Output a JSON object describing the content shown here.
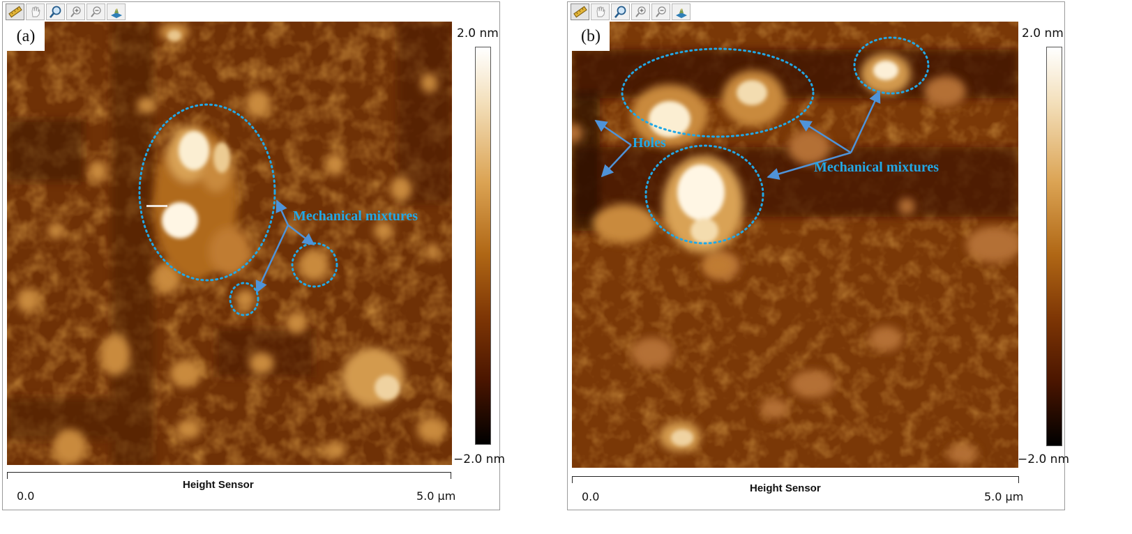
{
  "toolbar": {
    "tools": [
      {
        "name": "ruler-tool",
        "icon": "ruler-icon"
      },
      {
        "name": "pan-tool",
        "icon": "hand-icon"
      },
      {
        "name": "magnify-tool",
        "icon": "magnifier-icon"
      },
      {
        "name": "zoom-in-tool",
        "icon": "zoom-in-icon"
      },
      {
        "name": "zoom-out-tool",
        "icon": "zoom-out-icon"
      },
      {
        "name": "3d-view-tool",
        "icon": "3d-view-icon"
      }
    ]
  },
  "panels": [
    {
      "label": "(a)",
      "colorbar": {
        "max": "2.0 nm",
        "min": "−2.0 nm"
      },
      "axis": {
        "title": "Height Sensor",
        "start": "0.0",
        "end": "5.0 µm"
      },
      "annotations": [
        {
          "text": "Mechanical mixtures"
        }
      ]
    },
    {
      "label": "(b)",
      "colorbar": {
        "max": "2.0 nm",
        "min": "−2.0 nm"
      },
      "axis": {
        "title": "Height Sensor",
        "start": "0.0",
        "end": "5.0 µm"
      },
      "annotations": [
        {
          "text": "Holes"
        },
        {
          "text": "Mechanical mixtures"
        }
      ]
    }
  ],
  "colors": {
    "annotation": "#22a8e6",
    "arrow": "#4f93d8",
    "afm_low": "#3a1300",
    "afm_mid": "#7b3707",
    "afm_high": "#fff3d8"
  }
}
